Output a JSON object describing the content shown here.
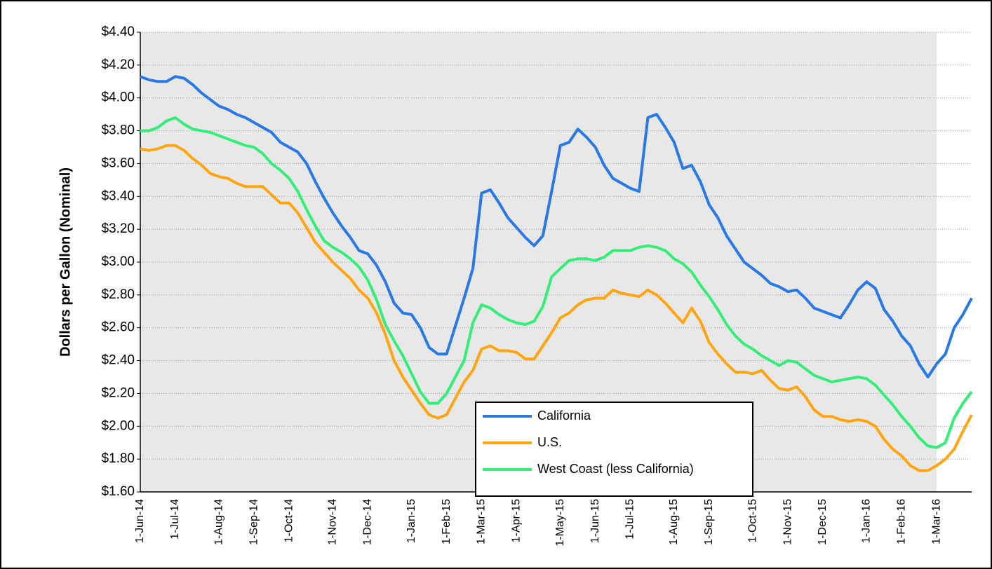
{
  "chart_data": {
    "type": "line",
    "y_label": "Dollars per Gallon (Nominal)",
    "categories": [
      "1-Jun-14",
      null,
      null,
      null,
      "1-Jul-14",
      null,
      null,
      null,
      null,
      "1-Aug-14",
      null,
      null,
      null,
      "1-Sep-14",
      null,
      null,
      null,
      "1-Oct-14",
      null,
      null,
      null,
      null,
      "1-Nov-14",
      null,
      null,
      null,
      "1-Dec-14",
      null,
      null,
      null,
      null,
      "1-Jan-15",
      null,
      null,
      null,
      "1-Feb-15",
      null,
      null,
      null,
      "1-Mar-15",
      null,
      null,
      null,
      "1-Apr-15",
      null,
      null,
      null,
      null,
      "1-May-15",
      null,
      null,
      null,
      "1-Jun-15",
      null,
      null,
      null,
      "1-Jul-15",
      null,
      null,
      null,
      null,
      "1-Aug-15",
      null,
      null,
      null,
      "1-Sep-15",
      null,
      null,
      null,
      null,
      "1-Oct-15",
      null,
      null,
      null,
      "1-Nov-15",
      null,
      null,
      null,
      "1-Dec-15",
      null,
      null,
      null,
      null,
      "1-Jan-16",
      null,
      null,
      null,
      "1-Feb-16",
      null,
      null,
      null,
      "1-Mar-16",
      null,
      null,
      null,
      null
    ],
    "series": [
      {
        "name": "California",
        "color": "#2878e8",
        "values": [
          4.13,
          4.11,
          4.1,
          4.1,
          4.13,
          4.12,
          4.08,
          4.03,
          3.99,
          3.95,
          3.93,
          3.9,
          3.88,
          3.85,
          3.82,
          3.79,
          3.73,
          3.7,
          3.67,
          3.6,
          3.49,
          3.39,
          3.3,
          3.22,
          3.15,
          3.07,
          3.05,
          2.98,
          2.88,
          2.75,
          2.69,
          2.68,
          2.6,
          2.48,
          2.44,
          2.44,
          2.61,
          2.78,
          2.96,
          3.42,
          3.44,
          3.36,
          3.27,
          3.21,
          3.15,
          3.1,
          3.16,
          3.43,
          3.71,
          3.73,
          3.81,
          3.76,
          3.7,
          3.59,
          3.51,
          3.48,
          3.45,
          3.43,
          3.88,
          3.9,
          3.82,
          3.73,
          3.57,
          3.59,
          3.49,
          3.35,
          3.27,
          3.16,
          3.08,
          3.0,
          2.96,
          2.92,
          2.87,
          2.85,
          2.82,
          2.83,
          2.78,
          2.72,
          2.7,
          2.68,
          2.66,
          2.74,
          2.83,
          2.88,
          2.84,
          2.71,
          2.64,
          2.55,
          2.49,
          2.38,
          2.3,
          2.38,
          2.44,
          2.6,
          2.68,
          2.78
        ]
      },
      {
        "name": "U.S.",
        "color": "#ffa510",
        "values": [
          3.69,
          3.68,
          3.69,
          3.71,
          3.71,
          3.68,
          3.63,
          3.59,
          3.54,
          3.52,
          3.51,
          3.48,
          3.46,
          3.46,
          3.46,
          3.41,
          3.36,
          3.36,
          3.3,
          3.21,
          3.12,
          3.06,
          3.0,
          2.95,
          2.9,
          2.83,
          2.78,
          2.69,
          2.56,
          2.4,
          2.3,
          2.22,
          2.14,
          2.07,
          2.05,
          2.07,
          2.17,
          2.27,
          2.34,
          2.47,
          2.49,
          2.46,
          2.46,
          2.45,
          2.41,
          2.41,
          2.49,
          2.57,
          2.66,
          2.69,
          2.74,
          2.77,
          2.78,
          2.78,
          2.83,
          2.81,
          2.8,
          2.79,
          2.83,
          2.8,
          2.75,
          2.69,
          2.63,
          2.72,
          2.64,
          2.51,
          2.44,
          2.38,
          2.33,
          2.33,
          2.32,
          2.34,
          2.28,
          2.23,
          2.22,
          2.24,
          2.18,
          2.1,
          2.06,
          2.06,
          2.04,
          2.03,
          2.04,
          2.03,
          2.0,
          1.92,
          1.86,
          1.82,
          1.76,
          1.73,
          1.73,
          1.76,
          1.8,
          1.86,
          1.97,
          2.07
        ]
      },
      {
        "name": "West Coast (less California)",
        "color": "#33ee77",
        "values": [
          3.8,
          3.8,
          3.82,
          3.86,
          3.88,
          3.84,
          3.81,
          3.8,
          3.79,
          3.77,
          3.75,
          3.73,
          3.71,
          3.7,
          3.66,
          3.6,
          3.56,
          3.51,
          3.43,
          3.32,
          3.22,
          3.13,
          3.09,
          3.06,
          3.02,
          2.97,
          2.89,
          2.77,
          2.62,
          2.52,
          2.43,
          2.32,
          2.21,
          2.14,
          2.14,
          2.2,
          2.3,
          2.4,
          2.63,
          2.74,
          2.72,
          2.68,
          2.65,
          2.63,
          2.62,
          2.64,
          2.73,
          2.91,
          2.96,
          3.01,
          3.02,
          3.02,
          3.01,
          3.03,
          3.07,
          3.07,
          3.07,
          3.09,
          3.1,
          3.09,
          3.07,
          3.02,
          2.99,
          2.94,
          2.86,
          2.79,
          2.71,
          2.62,
          2.55,
          2.5,
          2.47,
          2.43,
          2.4,
          2.37,
          2.4,
          2.39,
          2.35,
          2.31,
          2.29,
          2.27,
          2.28,
          2.29,
          2.3,
          2.29,
          2.25,
          2.19,
          2.13,
          2.06,
          2.0,
          1.93,
          1.88,
          1.87,
          1.9,
          2.05,
          2.14,
          2.21
        ]
      }
    ],
    "ylim": [
      1.6,
      4.4
    ],
    "yticks": [
      {
        "value": 1.6,
        "label": "$1.60"
      },
      {
        "value": 1.8,
        "label": "$1.80"
      },
      {
        "value": 2.0,
        "label": "$2.00"
      },
      {
        "value": 2.2,
        "label": "$2.20"
      },
      {
        "value": 2.4,
        "label": "$2.40"
      },
      {
        "value": 2.6,
        "label": "$2.60"
      },
      {
        "value": 2.8,
        "label": "$2.80"
      },
      {
        "value": 3.0,
        "label": "$3.00"
      },
      {
        "value": 3.2,
        "label": "$3.20"
      },
      {
        "value": 3.4,
        "label": "$3.40"
      },
      {
        "value": 3.6,
        "label": "$3.60"
      },
      {
        "value": 3.8,
        "label": "$3.80"
      },
      {
        "value": 4.0,
        "label": "$4.00"
      },
      {
        "value": 4.2,
        "label": "$4.20"
      },
      {
        "value": 4.4,
        "label": "$4.40"
      }
    ],
    "grid": true,
    "legend": "lower center"
  }
}
